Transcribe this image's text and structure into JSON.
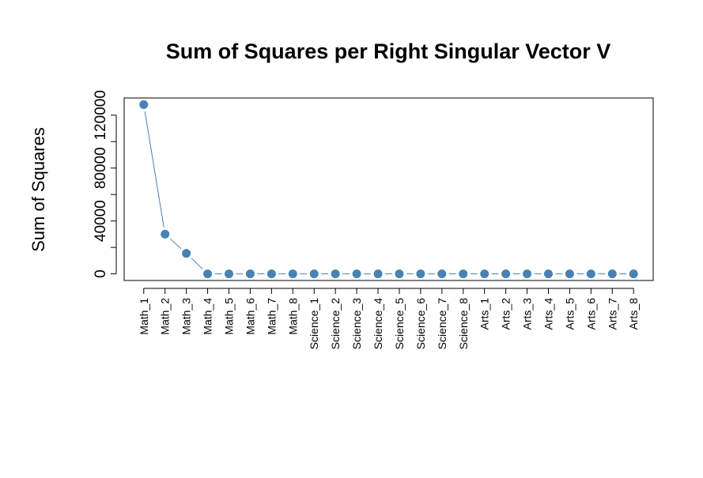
{
  "chart_data": {
    "type": "line",
    "title": "Sum of Squares per Right Singular Vector V",
    "y_label": "Sum of Squares",
    "categories": [
      "Math_1",
      "Math_2",
      "Math_3",
      "Math_4",
      "Math_5",
      "Math_6",
      "Math_7",
      "Math_8",
      "Science_1",
      "Science_2",
      "Science_3",
      "Science_4",
      "Science_5",
      "Science_6",
      "Science_7",
      "Science_8",
      "Arts_1",
      "Arts_2",
      "Arts_3",
      "Arts_4",
      "Arts_5",
      "Arts_6",
      "Arts_7",
      "Arts_8"
    ],
    "values": [
      128000,
      30000,
      15500,
      0,
      0,
      0,
      0,
      0,
      0,
      0,
      0,
      0,
      0,
      0,
      0,
      0,
      0,
      0,
      0,
      0,
      0,
      0,
      0,
      0
    ],
    "color": "#4682b4",
    "ylim": [
      -5000,
      133000
    ],
    "yticks": [
      0,
      20000,
      40000,
      60000,
      80000,
      100000,
      120000
    ]
  }
}
